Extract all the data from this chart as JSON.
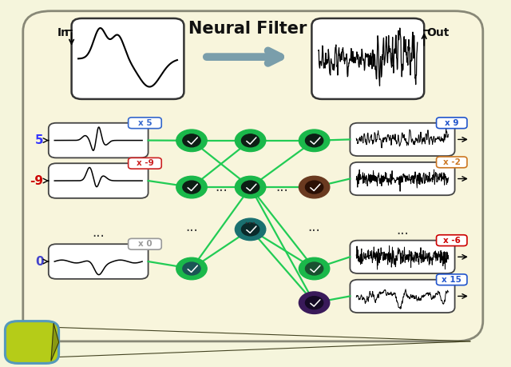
{
  "bg_color": "#f5f5dc",
  "fig_bg": "#f5f5dc",
  "title": "Neural Filter",
  "title_fontsize": 15,
  "arrow_color": "#7a9eab",
  "in_label": "In",
  "out_label": "Out",
  "input_labels": [
    "5",
    "-9",
    "0"
  ],
  "input_label_colors": [
    "#3333ff",
    "#cc0000",
    "#4444cc"
  ],
  "output_labels": [
    "x 9",
    "x -2",
    "x -6",
    "x 15"
  ],
  "output_label_colors": [
    "#2255cc",
    "#cc7722",
    "#cc0000",
    "#2255cc"
  ],
  "input_coeff_labels": [
    "x 5",
    "x -9",
    "x 0"
  ],
  "input_coeff_colors": [
    "#3366cc",
    "#cc2222",
    "#999999"
  ],
  "green_node": "#1ab84a",
  "teal_node": "#1a7070",
  "brown_node": "#6a3a20",
  "purple_node": "#3a1a5a",
  "dark_node_inner": "#0d1f15",
  "green_line": "#22cc55",
  "node_r": 0.03
}
